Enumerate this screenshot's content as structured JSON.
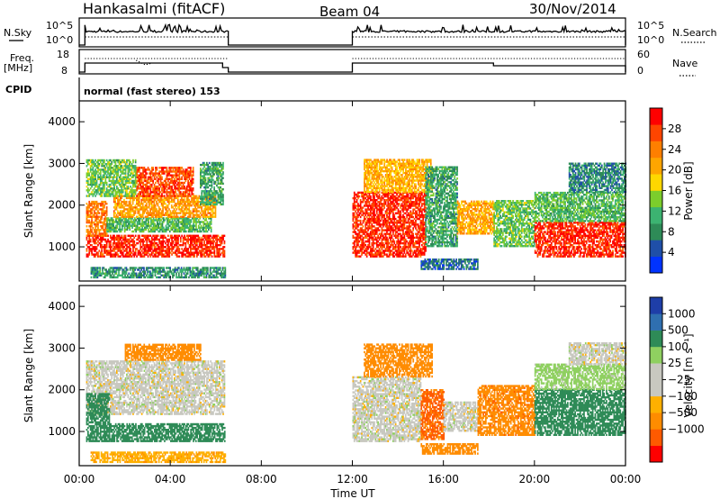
{
  "header": {
    "station": "Hankasalmi (fitACF)",
    "beam": "Beam 04",
    "date": "30/Nov/2014"
  },
  "panels": {
    "nsky": {
      "left_label": "N.Sky",
      "right_label": "N.Search",
      "left_ticks": [
        "10^5",
        "10^0"
      ],
      "right_ticks": [
        "10^5",
        "10^0"
      ]
    },
    "freq": {
      "left_label_1": "Freq.",
      "left_label_2": "[MHz]",
      "right_label": "Nave",
      "left_ticks": [
        "18",
        "8"
      ],
      "right_ticks": [
        "60",
        "0"
      ]
    },
    "cpid": {
      "label": "CPID",
      "value": "normal (fast stereo) 153"
    }
  },
  "colors": {
    "power_scale": [
      "#0033ff",
      "#1f4fa8",
      "#2e8b57",
      "#3cb371",
      "#7ccd2c",
      "#ffd700",
      "#ffa500",
      "#ff7f00",
      "#ff4500",
      "#ff0000"
    ],
    "velocity_scale": [
      "#ff0000",
      "#ff5a00",
      "#ff8c00",
      "#ffb000",
      "#c8c8c0",
      "#c8c8c0",
      "#8fd060",
      "#2e8b57",
      "#2f6fb0",
      "#1e3ea8"
    ]
  },
  "chart_data": [
    {
      "type": "heatmap",
      "name": "power",
      "ylabel": "Slant Range [km]",
      "ylim": [
        180,
        4500
      ],
      "yticks": [
        "1000",
        "2000",
        "3000",
        "4000"
      ],
      "xlim": [
        0,
        24
      ],
      "colorbar_label": "Power [dB]",
      "colorbar_ticks": [
        "4",
        "8",
        "12",
        "16",
        "20",
        "24",
        "28"
      ],
      "colorbar_range": [
        0,
        32
      ],
      "regions": [
        {
          "t0": 0.3,
          "t1": 6.4,
          "r0": 750,
          "r1": 1250,
          "v": 29
        },
        {
          "t0": 0.3,
          "t1": 1.2,
          "r0": 1250,
          "r1": 2100,
          "v": 24
        },
        {
          "t0": 1.2,
          "t1": 5.8,
          "r0": 1350,
          "r1": 1700,
          "v": 12
        },
        {
          "t0": 1.5,
          "t1": 6.0,
          "r0": 1700,
          "r1": 2200,
          "v": 22
        },
        {
          "t0": 2.5,
          "t1": 5.0,
          "r0": 2200,
          "r1": 2900,
          "v": 27
        },
        {
          "t0": 0.5,
          "t1": 6.4,
          "r0": 250,
          "r1": 500,
          "v": 9
        },
        {
          "t0": 0.3,
          "t1": 2.5,
          "r0": 2200,
          "r1": 3100,
          "v": 13
        },
        {
          "t0": 5.3,
          "t1": 6.3,
          "r0": 2000,
          "r1": 3000,
          "v": 10
        },
        {
          "t0": 12.0,
          "t1": 15.2,
          "r0": 750,
          "r1": 2300,
          "v": 29
        },
        {
          "t0": 12.5,
          "t1": 15.5,
          "r0": 2300,
          "r1": 3100,
          "v": 20
        },
        {
          "t0": 15.2,
          "t1": 16.6,
          "r0": 1000,
          "r1": 2900,
          "v": 10
        },
        {
          "t0": 16.6,
          "t1": 18.2,
          "r0": 1300,
          "r1": 2100,
          "v": 21
        },
        {
          "t0": 18.2,
          "t1": 20.0,
          "r0": 1000,
          "r1": 2100,
          "v": 13
        },
        {
          "t0": 20.0,
          "t1": 24.0,
          "r0": 750,
          "r1": 1600,
          "v": 29
        },
        {
          "t0": 20.0,
          "t1": 24.0,
          "r0": 1600,
          "r1": 2300,
          "v": 12
        },
        {
          "t0": 21.5,
          "t1": 24.0,
          "r0": 2300,
          "r1": 3000,
          "v": 8
        },
        {
          "t0": 15.0,
          "t1": 17.5,
          "r0": 450,
          "r1": 700,
          "v": 6
        }
      ]
    },
    {
      "type": "heatmap",
      "name": "velocity",
      "ylabel": "Slant Range [km]",
      "ylim": [
        180,
        4500
      ],
      "yticks": [
        "1000",
        "2000",
        "3000",
        "4000"
      ],
      "xlabel": "Time UT",
      "xticks": [
        "00:00",
        "04:00",
        "08:00",
        "12:00",
        "16:00",
        "20:00",
        "00:00"
      ],
      "xlim": [
        0,
        24
      ],
      "colorbar_label": "Velocity [m s⁻¹]",
      "colorbar_ticks": [
        "1000",
        "500",
        "100",
        "25",
        "−25",
        "−100",
        "−500",
        "−1000"
      ],
      "regions": [
        {
          "t0": 0.3,
          "t1": 6.4,
          "r0": 1400,
          "r1": 2700,
          "v": 0
        },
        {
          "t0": 0.3,
          "t1": 1.3,
          "r0": 750,
          "r1": 1900,
          "v": 200
        },
        {
          "t0": 1.3,
          "t1": 6.4,
          "r0": 750,
          "r1": 1200,
          "v": 150
        },
        {
          "t0": 2.0,
          "t1": 5.3,
          "r0": 2700,
          "r1": 3100,
          "v": -250
        },
        {
          "t0": 0.5,
          "t1": 6.4,
          "r0": 250,
          "r1": 500,
          "v": -80
        },
        {
          "t0": 12.0,
          "t1": 15.0,
          "r0": 750,
          "r1": 2300,
          "v": 0
        },
        {
          "t0": 12.5,
          "t1": 15.5,
          "r0": 2300,
          "r1": 3100,
          "v": -150
        },
        {
          "t0": 15.0,
          "t1": 16.0,
          "r0": 800,
          "r1": 2000,
          "v": -600
        },
        {
          "t0": 16.0,
          "t1": 17.5,
          "r0": 1000,
          "r1": 1700,
          "v": 0
        },
        {
          "t0": 17.5,
          "t1": 20.0,
          "r0": 900,
          "r1": 2100,
          "v": -400
        },
        {
          "t0": 20.0,
          "t1": 24.0,
          "r0": 900,
          "r1": 2000,
          "v": 300
        },
        {
          "t0": 20.0,
          "t1": 24.0,
          "r0": 2000,
          "r1": 2600,
          "v": 50
        },
        {
          "t0": 21.5,
          "t1": 24.0,
          "r0": 2600,
          "r1": 3100,
          "v": 0
        },
        {
          "t0": 15.0,
          "t1": 17.5,
          "r0": 450,
          "r1": 700,
          "v": -200
        }
      ]
    }
  ]
}
